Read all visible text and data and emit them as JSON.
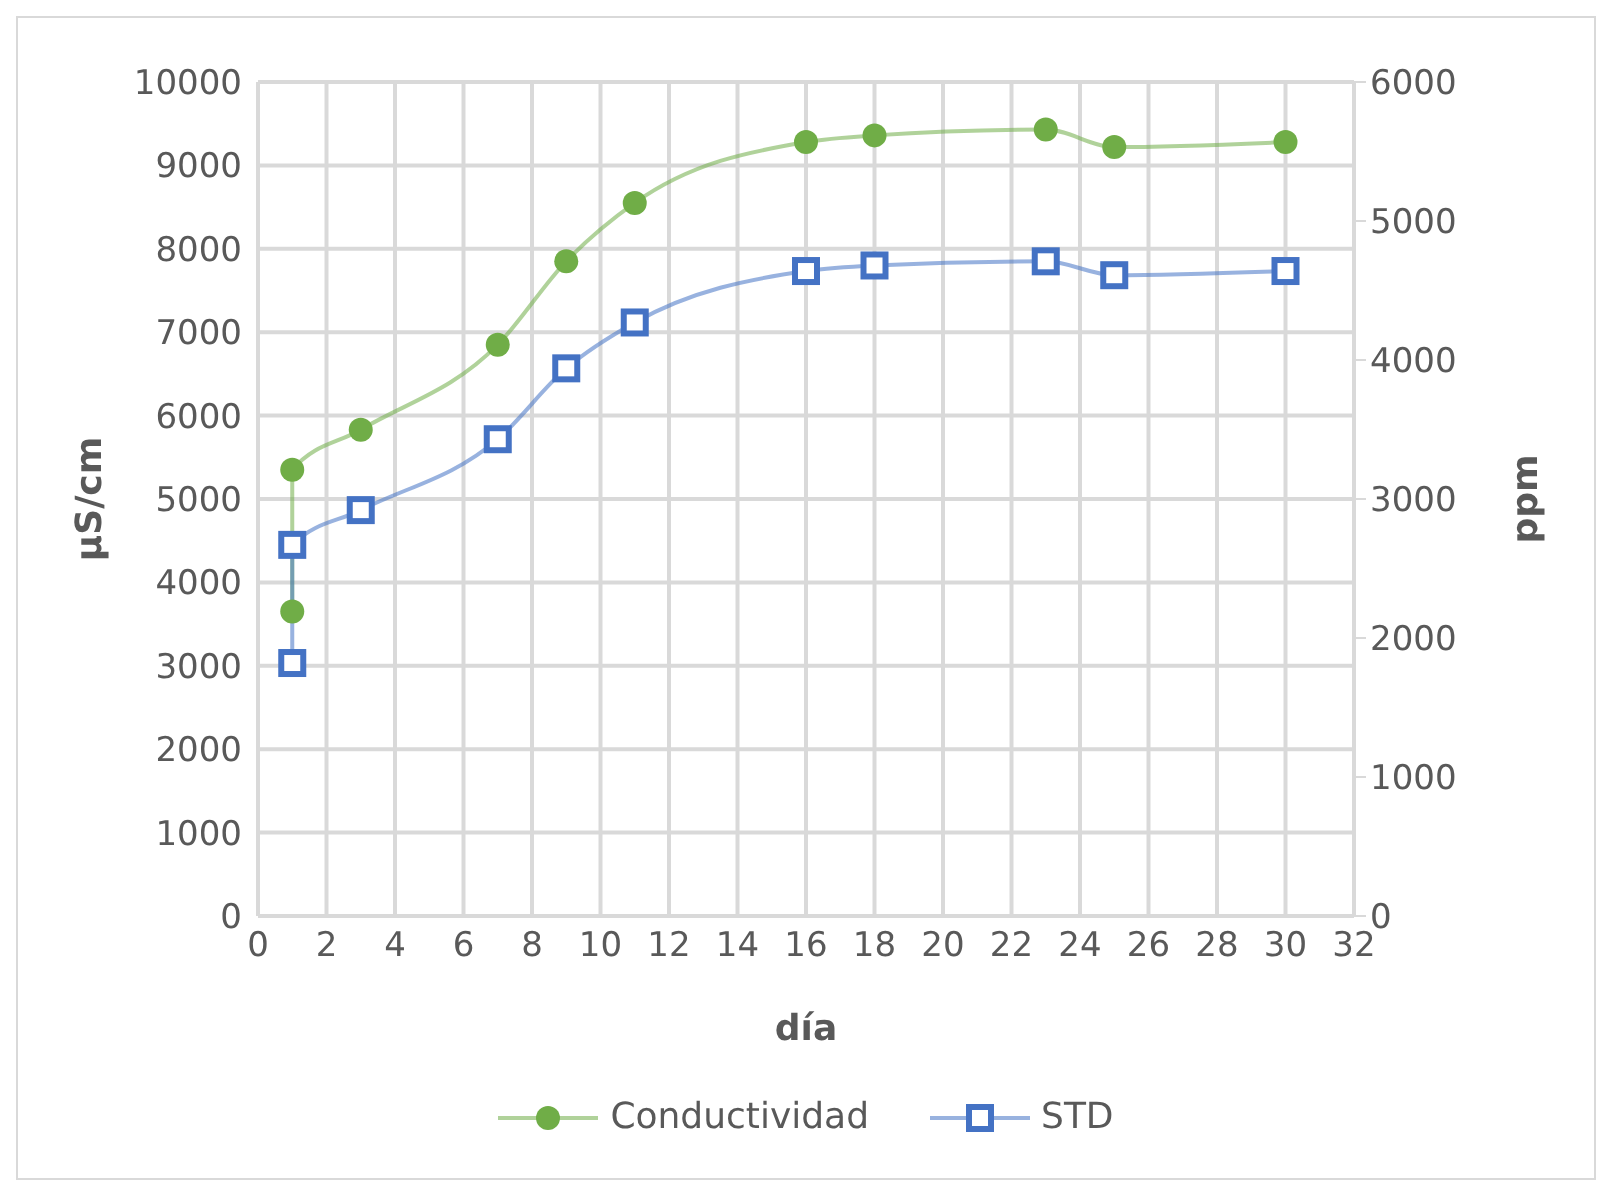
{
  "chart_data": {
    "type": "line",
    "xlabel": "día",
    "ylabel": "µS/cm",
    "y2label": "ppm",
    "xlim": [
      0,
      32
    ],
    "xticks": [
      0,
      2,
      4,
      6,
      8,
      10,
      12,
      14,
      16,
      18,
      20,
      22,
      24,
      26,
      28,
      30,
      32
    ],
    "ylim": [
      0,
      10000
    ],
    "yticks": [
      0,
      1000,
      2000,
      3000,
      4000,
      5000,
      6000,
      7000,
      8000,
      9000,
      10000
    ],
    "y2lim": [
      0,
      6000
    ],
    "y2ticks": [
      0,
      1000,
      2000,
      3000,
      4000,
      5000,
      6000
    ],
    "x": [
      1,
      1,
      3,
      7,
      9,
      11,
      16,
      18,
      23,
      25,
      30
    ],
    "series": [
      {
        "name": "Conductividad",
        "color": "#70ad47",
        "marker": "circle",
        "values": [
          3650,
          5350,
          5830,
          6850,
          7850,
          8550,
          9280,
          9360,
          9430,
          9220,
          9280
        ]
      },
      {
        "name": "STD",
        "color": "#4472c4",
        "marker": "square",
        "axis": "y2",
        "values": [
          1820,
          2670,
          2920,
          3430,
          3940,
          4270,
          4640,
          4680,
          4710,
          4610,
          4640
        ]
      }
    ],
    "grid": true,
    "legend": "bottom"
  }
}
